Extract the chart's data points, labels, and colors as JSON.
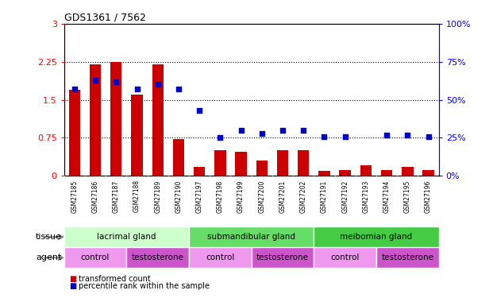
{
  "title": "GDS1361 / 7562",
  "samples": [
    "GSM27185",
    "GSM27186",
    "GSM27187",
    "GSM27188",
    "GSM27189",
    "GSM27190",
    "GSM27197",
    "GSM27198",
    "GSM27199",
    "GSM27200",
    "GSM27201",
    "GSM27202",
    "GSM27191",
    "GSM27192",
    "GSM27193",
    "GSM27194",
    "GSM27195",
    "GSM27196"
  ],
  "bar_values": [
    1.7,
    2.2,
    2.25,
    1.6,
    2.2,
    0.72,
    0.18,
    0.5,
    0.48,
    0.3,
    0.5,
    0.5,
    0.1,
    0.12,
    0.2,
    0.12,
    0.18,
    0.12
  ],
  "dot_values": [
    57,
    63,
    62,
    57,
    60,
    57,
    43,
    25,
    30,
    28,
    30,
    30,
    26,
    26,
    null,
    27,
    27,
    26
  ],
  "bar_color": "#cc0000",
  "dot_color": "#0000cc",
  "ylim_left": [
    0,
    3
  ],
  "ylim_right": [
    0,
    100
  ],
  "yticks_left": [
    0,
    0.75,
    1.5,
    2.25,
    3
  ],
  "yticks_right": [
    0,
    25,
    50,
    75,
    100
  ],
  "ytick_labels_left": [
    "0",
    "0.75",
    "1.5",
    "2.25",
    "3"
  ],
  "ytick_labels_right": [
    "0%",
    "25%",
    "50%",
    "75%",
    "100%"
  ],
  "hlines": [
    0.75,
    1.5,
    2.25
  ],
  "tissue_groups": [
    {
      "label": "lacrimal gland",
      "start": 0,
      "end": 6,
      "color": "#ccffcc"
    },
    {
      "label": "submandibular gland",
      "start": 6,
      "end": 12,
      "color": "#66dd66"
    },
    {
      "label": "meibomian gland",
      "start": 12,
      "end": 18,
      "color": "#44cc44"
    }
  ],
  "agent_groups": [
    {
      "label": "control",
      "start": 0,
      "end": 3,
      "color": "#ee99ee"
    },
    {
      "label": "testosterone",
      "start": 3,
      "end": 6,
      "color": "#cc55cc"
    },
    {
      "label": "control",
      "start": 6,
      "end": 9,
      "color": "#ee99ee"
    },
    {
      "label": "testosterone",
      "start": 9,
      "end": 12,
      "color": "#cc55cc"
    },
    {
      "label": "control",
      "start": 12,
      "end": 15,
      "color": "#ee99ee"
    },
    {
      "label": "testosterone",
      "start": 15,
      "end": 18,
      "color": "#cc55cc"
    }
  ],
  "legend_bar_label": "transformed count",
  "legend_dot_label": "percentile rank within the sample",
  "tissue_label": "tissue",
  "agent_label": "agent",
  "xtick_bg": "#cccccc",
  "plot_bg": "#ffffff"
}
